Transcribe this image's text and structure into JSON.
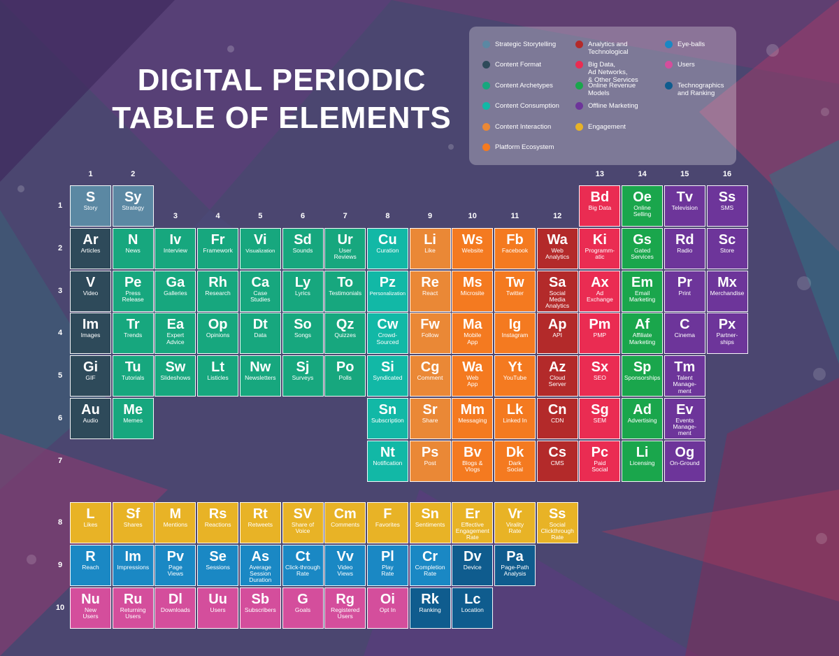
{
  "title": "DIGITAL PERIODIC\nTABLE OF ELEMENTS",
  "colors": {
    "storytelling": "#5b88a3",
    "format": "#2e4a5a",
    "archetypes": "#17a77e",
    "consumption": "#12b8a6",
    "interaction": "#ea8836",
    "platform": "#f47a20",
    "analytics": "#b32a2a",
    "bigdata": "#ea2c52",
    "revenue": "#1aa64c",
    "offline": "#6d359a",
    "engagement": "#e8b326",
    "eyeballs": "#1a88c4",
    "users": "#d44e9c",
    "technographics": "#0f5c8e"
  },
  "legend": [
    {
      "label": "Strategic Storytelling",
      "color": "storytelling"
    },
    {
      "label": "Content Format",
      "color": "format"
    },
    {
      "label": "Content Archetypes",
      "color": "archetypes"
    },
    {
      "label": "Content Consumption",
      "color": "consumption"
    },
    {
      "label": "Content Interaction",
      "color": "interaction"
    },
    {
      "label": "Platform Ecosystem",
      "color": "platform"
    },
    {
      "label": "Analytics and\nTechnological",
      "color": "analytics"
    },
    {
      "label": "Big Data,\nAd Networks,\n& Other Services",
      "color": "bigdata"
    },
    {
      "label": "Online Revenue\nModels",
      "color": "revenue"
    },
    {
      "label": "Offline Marketing",
      "color": "offline"
    },
    {
      "label": "Engagement",
      "color": "engagement"
    },
    {
      "label": "Eye-balls",
      "color": "eyeballs"
    },
    {
      "label": "Users",
      "color": "users"
    },
    {
      "label": "Technographics\nand Ranking",
      "color": "technographics"
    }
  ],
  "column_numbers": [
    "1",
    "2",
    "3",
    "4",
    "5",
    "6",
    "7",
    "8",
    "9",
    "10",
    "11",
    "12",
    "13",
    "14",
    "15",
    "16"
  ],
  "row_numbers": [
    "1",
    "2",
    "3",
    "4",
    "5",
    "6",
    "7",
    "8",
    "9",
    "10"
  ],
  "elements": [
    {
      "symbol": "S",
      "name": "Story",
      "row": 1,
      "col": 1,
      "color": "storytelling"
    },
    {
      "symbol": "Sy",
      "name": "Strategy",
      "row": 1,
      "col": 2,
      "color": "storytelling"
    },
    {
      "symbol": "Bd",
      "name": "Big Data",
      "row": 1,
      "col": 13,
      "color": "bigdata"
    },
    {
      "symbol": "Oe",
      "name": "Online\nSelling",
      "row": 1,
      "col": 14,
      "color": "revenue"
    },
    {
      "symbol": "Tv",
      "name": "Television",
      "row": 1,
      "col": 15,
      "color": "offline"
    },
    {
      "symbol": "Ss",
      "name": "SMS",
      "row": 1,
      "col": 16,
      "color": "offline"
    },
    {
      "symbol": "Ar",
      "name": "Articles",
      "row": 2,
      "col": 1,
      "color": "format"
    },
    {
      "symbol": "N",
      "name": "News",
      "row": 2,
      "col": 2,
      "color": "archetypes"
    },
    {
      "symbol": "Iv",
      "name": "Interview",
      "row": 2,
      "col": 3,
      "color": "archetypes"
    },
    {
      "symbol": "Fr",
      "name": "Framework",
      "row": 2,
      "col": 4,
      "color": "archetypes"
    },
    {
      "symbol": "Vi",
      "name": "Visualization",
      "row": 2,
      "col": 5,
      "color": "archetypes"
    },
    {
      "symbol": "Sd",
      "name": "Sounds",
      "row": 2,
      "col": 6,
      "color": "archetypes"
    },
    {
      "symbol": "Ur",
      "name": "User\nReviews",
      "row": 2,
      "col": 7,
      "color": "archetypes"
    },
    {
      "symbol": "Cu",
      "name": "Curation",
      "row": 2,
      "col": 8,
      "color": "consumption"
    },
    {
      "symbol": "Li",
      "name": "Like",
      "row": 2,
      "col": 9,
      "color": "interaction"
    },
    {
      "symbol": "Ws",
      "name": "Website",
      "row": 2,
      "col": 10,
      "color": "platform"
    },
    {
      "symbol": "Fb",
      "name": "Facebook",
      "row": 2,
      "col": 11,
      "color": "platform"
    },
    {
      "symbol": "Wa",
      "name": "Web\nAnalytics",
      "row": 2,
      "col": 12,
      "color": "analytics"
    },
    {
      "symbol": "Ki",
      "name": "Programm-\natic",
      "row": 2,
      "col": 13,
      "color": "bigdata"
    },
    {
      "symbol": "Gs",
      "name": "Gated\nServices",
      "row": 2,
      "col": 14,
      "color": "revenue"
    },
    {
      "symbol": "Rd",
      "name": "Radio",
      "row": 2,
      "col": 15,
      "color": "offline"
    },
    {
      "symbol": "Sc",
      "name": "Store",
      "row": 2,
      "col": 16,
      "color": "offline"
    },
    {
      "symbol": "V",
      "name": "Video",
      "row": 3,
      "col": 1,
      "color": "format"
    },
    {
      "symbol": "Pe",
      "name": "Press\nRelease",
      "row": 3,
      "col": 2,
      "color": "archetypes"
    },
    {
      "symbol": "Ga",
      "name": "Galleries",
      "row": 3,
      "col": 3,
      "color": "archetypes"
    },
    {
      "symbol": "Rh",
      "name": "Research",
      "row": 3,
      "col": 4,
      "color": "archetypes"
    },
    {
      "symbol": "Ca",
      "name": "Case\nStudies",
      "row": 3,
      "col": 5,
      "color": "archetypes"
    },
    {
      "symbol": "Ly",
      "name": "Lyrics",
      "row": 3,
      "col": 6,
      "color": "archetypes"
    },
    {
      "symbol": "To",
      "name": "Testimonials",
      "row": 3,
      "col": 7,
      "color": "archetypes"
    },
    {
      "symbol": "Pz",
      "name": "Personalization",
      "row": 3,
      "col": 8,
      "color": "consumption"
    },
    {
      "symbol": "Re",
      "name": "React",
      "row": 3,
      "col": 9,
      "color": "interaction"
    },
    {
      "symbol": "Ms",
      "name": "Microsite",
      "row": 3,
      "col": 10,
      "color": "platform"
    },
    {
      "symbol": "Tw",
      "name": "Twitter",
      "row": 3,
      "col": 11,
      "color": "platform"
    },
    {
      "symbol": "Sa",
      "name": "Social\nMedia\nAnalytics",
      "row": 3,
      "col": 12,
      "color": "analytics"
    },
    {
      "symbol": "Ax",
      "name": "Ad\nExchange",
      "row": 3,
      "col": 13,
      "color": "bigdata"
    },
    {
      "symbol": "Em",
      "name": "Email\nMarketing",
      "row": 3,
      "col": 14,
      "color": "revenue"
    },
    {
      "symbol": "Pr",
      "name": "Print",
      "row": 3,
      "col": 15,
      "color": "offline"
    },
    {
      "symbol": "Mx",
      "name": "Merchandise",
      "row": 3,
      "col": 16,
      "color": "offline"
    },
    {
      "symbol": "Im",
      "name": "Images",
      "row": 4,
      "col": 1,
      "color": "format"
    },
    {
      "symbol": "Tr",
      "name": "Trends",
      "row": 4,
      "col": 2,
      "color": "archetypes"
    },
    {
      "symbol": "Ea",
      "name": "Expert\nAdvice",
      "row": 4,
      "col": 3,
      "color": "archetypes"
    },
    {
      "symbol": "Op",
      "name": "Opinions",
      "row": 4,
      "col": 4,
      "color": "archetypes"
    },
    {
      "symbol": "Dt",
      "name": "Data",
      "row": 4,
      "col": 5,
      "color": "archetypes"
    },
    {
      "symbol": "So",
      "name": "Songs",
      "row": 4,
      "col": 6,
      "color": "archetypes"
    },
    {
      "symbol": "Qz",
      "name": "Quizzes",
      "row": 4,
      "col": 7,
      "color": "archetypes"
    },
    {
      "symbol": "Cw",
      "name": "Crowd-\nSourced",
      "row": 4,
      "col": 8,
      "color": "consumption"
    },
    {
      "symbol": "Fw",
      "name": "Follow",
      "row": 4,
      "col": 9,
      "color": "interaction"
    },
    {
      "symbol": "Ma",
      "name": "Mobile\nApp",
      "row": 4,
      "col": 10,
      "color": "platform"
    },
    {
      "symbol": "Ig",
      "name": "Instagram",
      "row": 4,
      "col": 11,
      "color": "platform"
    },
    {
      "symbol": "Ap",
      "name": "API",
      "row": 4,
      "col": 12,
      "color": "analytics"
    },
    {
      "symbol": "Pm",
      "name": "PMP",
      "row": 4,
      "col": 13,
      "color": "bigdata"
    },
    {
      "symbol": "Af",
      "name": "Affiliate\nMarketing",
      "row": 4,
      "col": 14,
      "color": "revenue"
    },
    {
      "symbol": "C",
      "name": "Cinema",
      "row": 4,
      "col": 15,
      "color": "offline"
    },
    {
      "symbol": "Px",
      "name": "Partner-\nships",
      "row": 4,
      "col": 16,
      "color": "offline"
    },
    {
      "symbol": "Gi",
      "name": "GIF",
      "row": 5,
      "col": 1,
      "color": "format"
    },
    {
      "symbol": "Tu",
      "name": "Tutorials",
      "row": 5,
      "col": 2,
      "color": "archetypes"
    },
    {
      "symbol": "Sw",
      "name": "Slideshows",
      "row": 5,
      "col": 3,
      "color": "archetypes"
    },
    {
      "symbol": "Lt",
      "name": "Listicles",
      "row": 5,
      "col": 4,
      "color": "archetypes"
    },
    {
      "symbol": "Nw",
      "name": "Newsletters",
      "row": 5,
      "col": 5,
      "color": "archetypes"
    },
    {
      "symbol": "Sj",
      "name": "Surveys",
      "row": 5,
      "col": 6,
      "color": "archetypes"
    },
    {
      "symbol": "Po",
      "name": "Polls",
      "row": 5,
      "col": 7,
      "color": "archetypes"
    },
    {
      "symbol": "Si",
      "name": "Syndicated",
      "row": 5,
      "col": 8,
      "color": "consumption"
    },
    {
      "symbol": "Cg",
      "name": "Comment",
      "row": 5,
      "col": 9,
      "color": "interaction"
    },
    {
      "symbol": "Wa",
      "name": "Web\nApp",
      "row": 5,
      "col": 10,
      "color": "platform"
    },
    {
      "symbol": "Yt",
      "name": "YouTube",
      "row": 5,
      "col": 11,
      "color": "platform"
    },
    {
      "symbol": "Az",
      "name": "Cloud\nServer",
      "row": 5,
      "col": 12,
      "color": "analytics"
    },
    {
      "symbol": "Sx",
      "name": "SEO",
      "row": 5,
      "col": 13,
      "color": "bigdata"
    },
    {
      "symbol": "Sp",
      "name": "Sponsorships",
      "row": 5,
      "col": 14,
      "color": "revenue"
    },
    {
      "symbol": "Tm",
      "name": "Talent\nManage-\nment",
      "row": 5,
      "col": 15,
      "color": "offline"
    },
    {
      "symbol": "Au",
      "name": "Audio",
      "row": 6,
      "col": 1,
      "color": "format"
    },
    {
      "symbol": "Me",
      "name": "Memes",
      "row": 6,
      "col": 2,
      "color": "archetypes"
    },
    {
      "symbol": "Sn",
      "name": "Subscription",
      "row": 6,
      "col": 8,
      "color": "consumption"
    },
    {
      "symbol": "Sr",
      "name": "Share",
      "row": 6,
      "col": 9,
      "color": "interaction"
    },
    {
      "symbol": "Mm",
      "name": "Messaging",
      "row": 6,
      "col": 10,
      "color": "platform"
    },
    {
      "symbol": "Lk",
      "name": "Linked In",
      "row": 6,
      "col": 11,
      "color": "platform"
    },
    {
      "symbol": "Cn",
      "name": "CDN",
      "row": 6,
      "col": 12,
      "color": "analytics"
    },
    {
      "symbol": "Sg",
      "name": "SEM",
      "row": 6,
      "col": 13,
      "color": "bigdata"
    },
    {
      "symbol": "Ad",
      "name": "Advertising",
      "row": 6,
      "col": 14,
      "color": "revenue"
    },
    {
      "symbol": "Ev",
      "name": "Events\nManage-\nment",
      "row": 6,
      "col": 15,
      "color": "offline"
    },
    {
      "symbol": "Nt",
      "name": "Notification",
      "row": 7,
      "col": 8,
      "color": "consumption"
    },
    {
      "symbol": "Ps",
      "name": "Post",
      "row": 7,
      "col": 9,
      "color": "interaction"
    },
    {
      "symbol": "Bv",
      "name": "Blogs &\nVlogs",
      "row": 7,
      "col": 10,
      "color": "platform"
    },
    {
      "symbol": "Dk",
      "name": "Dark\nSocial",
      "row": 7,
      "col": 11,
      "color": "platform"
    },
    {
      "symbol": "Cs",
      "name": "CMS",
      "row": 7,
      "col": 12,
      "color": "analytics"
    },
    {
      "symbol": "Pc",
      "name": "Paid\nSocial",
      "row": 7,
      "col": 13,
      "color": "bigdata"
    },
    {
      "symbol": "Li",
      "name": "Licensing",
      "row": 7,
      "col": 14,
      "color": "revenue"
    },
    {
      "symbol": "Og",
      "name": "On-Ground",
      "row": 7,
      "col": 15,
      "color": "offline"
    },
    {
      "symbol": "L",
      "name": "Likes",
      "row": 8,
      "col": 1,
      "color": "engagement"
    },
    {
      "symbol": "Sf",
      "name": "Shares",
      "row": 8,
      "col": 2,
      "color": "engagement"
    },
    {
      "symbol": "M",
      "name": "Mentions",
      "row": 8,
      "col": 3,
      "color": "engagement"
    },
    {
      "symbol": "Rs",
      "name": "Reactions",
      "row": 8,
      "col": 4,
      "color": "engagement"
    },
    {
      "symbol": "Rt",
      "name": "Retweets",
      "row": 8,
      "col": 5,
      "color": "engagement"
    },
    {
      "symbol": "SV",
      "name": "Share of\nVoice",
      "row": 8,
      "col": 6,
      "color": "engagement"
    },
    {
      "symbol": "Cm",
      "name": "Comments",
      "row": 8,
      "col": 7,
      "color": "engagement"
    },
    {
      "symbol": "F",
      "name": "Favorites",
      "row": 8,
      "col": 8,
      "color": "engagement"
    },
    {
      "symbol": "Sn",
      "name": "Sentiments",
      "row": 8,
      "col": 9,
      "color": "engagement"
    },
    {
      "symbol": "Er",
      "name": "Effective\nEngagement\nRate",
      "row": 8,
      "col": 10,
      "color": "engagement"
    },
    {
      "symbol": "Vr",
      "name": "Virality\nRate",
      "row": 8,
      "col": 11,
      "color": "engagement"
    },
    {
      "symbol": "Ss",
      "name": "Social\nClickthrough\nRate",
      "row": 8,
      "col": 12,
      "color": "engagement"
    },
    {
      "symbol": "R",
      "name": "Reach",
      "row": 9,
      "col": 1,
      "color": "eyeballs"
    },
    {
      "symbol": "Im",
      "name": "Impressions",
      "row": 9,
      "col": 2,
      "color": "eyeballs"
    },
    {
      "symbol": "Pv",
      "name": "Page\nViews",
      "row": 9,
      "col": 3,
      "color": "eyeballs"
    },
    {
      "symbol": "Se",
      "name": "Sessions",
      "row": 9,
      "col": 4,
      "color": "eyeballs"
    },
    {
      "symbol": "As",
      "name": "Average\nSession\nDuration",
      "row": 9,
      "col": 5,
      "color": "eyeballs"
    },
    {
      "symbol": "Ct",
      "name": "Click-through\nRate",
      "row": 9,
      "col": 6,
      "color": "eyeballs"
    },
    {
      "symbol": "Vv",
      "name": "Video\nViews",
      "row": 9,
      "col": 7,
      "color": "eyeballs"
    },
    {
      "symbol": "Pl",
      "name": "Play\nRate",
      "row": 9,
      "col": 8,
      "color": "eyeballs"
    },
    {
      "symbol": "Cr",
      "name": "Completion\nRate",
      "row": 9,
      "col": 9,
      "color": "eyeballs"
    },
    {
      "symbol": "Dv",
      "name": "Device",
      "row": 9,
      "col": 10,
      "color": "technographics"
    },
    {
      "symbol": "Pa",
      "name": "Page-Path\nAnalysis",
      "row": 9,
      "col": 11,
      "color": "technographics"
    },
    {
      "symbol": "Nu",
      "name": "New\nUsers",
      "row": 10,
      "col": 1,
      "color": "users"
    },
    {
      "symbol": "Ru",
      "name": "Returning\nUsers",
      "row": 10,
      "col": 2,
      "color": "users"
    },
    {
      "symbol": "Dl",
      "name": "Downloads",
      "row": 10,
      "col": 3,
      "color": "users"
    },
    {
      "symbol": "Uu",
      "name": "Users",
      "row": 10,
      "col": 4,
      "color": "users"
    },
    {
      "symbol": "Sb",
      "name": "Subscribers",
      "row": 10,
      "col": 5,
      "color": "users"
    },
    {
      "symbol": "G",
      "name": "Goals",
      "row": 10,
      "col": 6,
      "color": "users"
    },
    {
      "symbol": "Rg",
      "name": "Registered\nUsers",
      "row": 10,
      "col": 7,
      "color": "users"
    },
    {
      "symbol": "Oi",
      "name": "Opt In",
      "row": 10,
      "col": 8,
      "color": "users"
    },
    {
      "symbol": "Rk",
      "name": "Ranking",
      "row": 10,
      "col": 9,
      "color": "technographics"
    },
    {
      "symbol": "Lc",
      "name": "Location",
      "row": 10,
      "col": 10,
      "color": "technographics"
    }
  ]
}
